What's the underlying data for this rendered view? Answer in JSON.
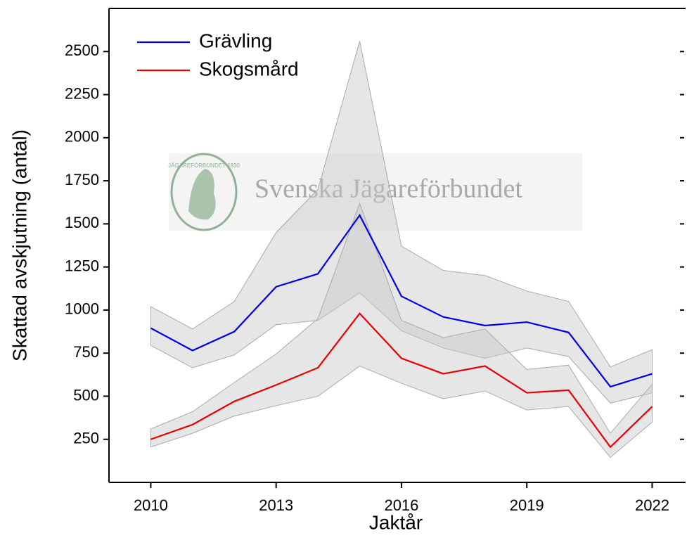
{
  "chart_data": {
    "type": "line",
    "x_label": "Jaktår",
    "y_label": "Skattad avskjutning (antal)",
    "x": [
      2010,
      2011,
      2012,
      2013,
      2014,
      2015,
      2016,
      2017,
      2018,
      2019,
      2020,
      2021,
      2022
    ],
    "series": [
      {
        "name": "Grävling",
        "color": "#0000e6",
        "values": [
          895,
          765,
          875,
          1135,
          1210,
          1550,
          1080,
          960,
          910,
          930,
          870,
          555,
          630
        ],
        "upper": [
          1020,
          890,
          1050,
          1450,
          1700,
          2560,
          1370,
          1230,
          1200,
          1110,
          1050,
          670,
          770
        ],
        "lower": [
          795,
          665,
          740,
          915,
          940,
          1100,
          880,
          780,
          720,
          780,
          730,
          460,
          520
        ]
      },
      {
        "name": "Skogsmård",
        "color": "#e60000",
        "values": [
          250,
          335,
          470,
          565,
          665,
          980,
          720,
          630,
          675,
          520,
          535,
          205,
          440
        ],
        "upper": [
          310,
          410,
          580,
          745,
          950,
          1620,
          940,
          840,
          890,
          655,
          680,
          285,
          570
        ],
        "lower": [
          205,
          285,
          385,
          445,
          500,
          675,
          575,
          485,
          530,
          420,
          440,
          145,
          350
        ]
      }
    ],
    "band_color": "#c8c8c8",
    "xlim": [
      2009,
      2022.8
    ],
    "ylim": [
      0,
      2750
    ],
    "xticks": [
      2010,
      2013,
      2016,
      2019,
      2022
    ],
    "yticks": [
      250,
      500,
      750,
      1000,
      1250,
      1500,
      1750,
      2000,
      2250,
      2500
    ],
    "legend": "upper left",
    "watermark": {
      "text": "Svenska Jägareförbundet",
      "logo_text": "JÄGAREFÖRBUNDET 1830"
    }
  }
}
